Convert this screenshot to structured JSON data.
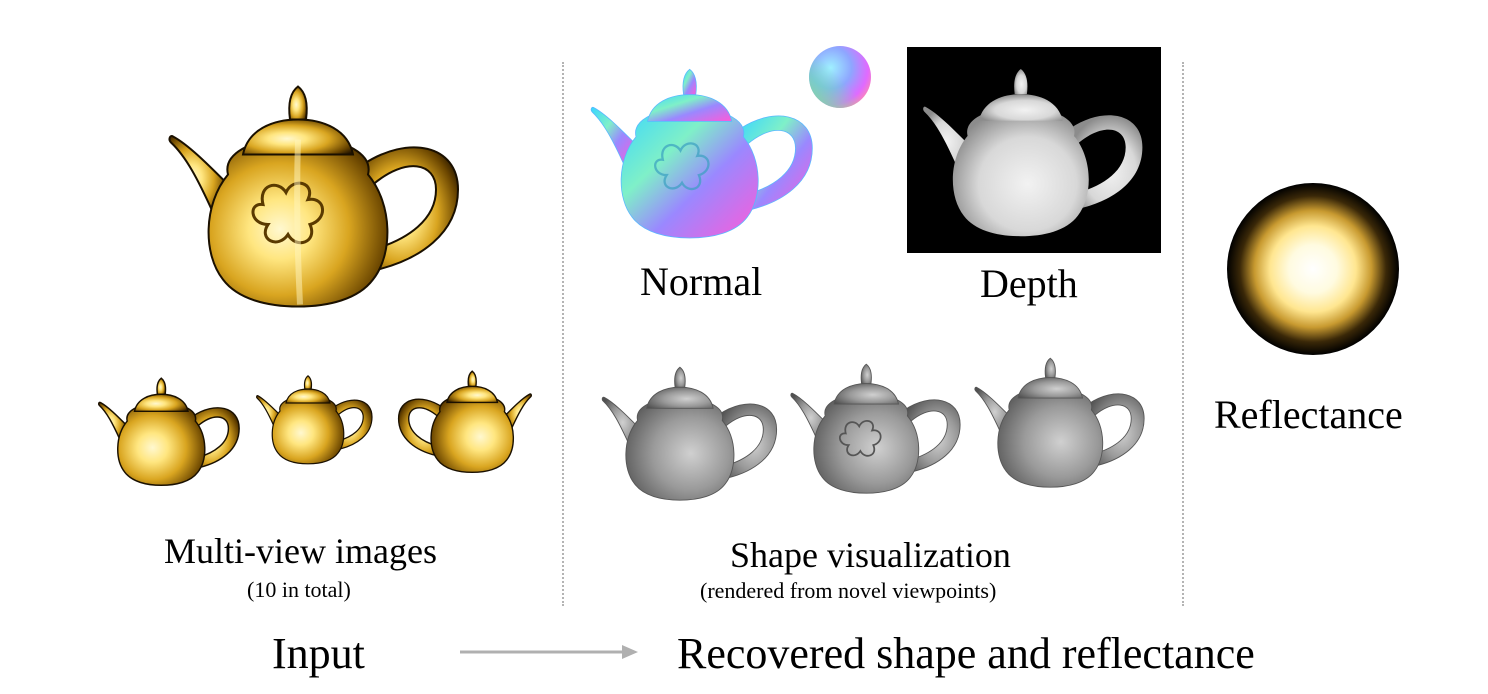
{
  "labels": {
    "normal": "Normal",
    "depth": "Depth",
    "reflectance": "Reflectance",
    "multiview_title": "Multi-view images",
    "multiview_sub": "(10 in total)",
    "shape_title": "Shape visualization",
    "shape_sub": "(rendered from novel viewpoints)",
    "input": "Input",
    "output": "Recovered shape and reflectance"
  },
  "colors": {
    "gold": "#e8c040",
    "gold_highlight": "#fff6c0",
    "gold_shadow": "#2a1a00",
    "gray_render": "#8e8e8e",
    "depth_bg": "#000000",
    "arrow": "#b0b0b0",
    "divider": "#b4b4b4"
  },
  "icons": {
    "main_input": "golden-teapot-icon",
    "normal_map": "normal-map-teapot-icon",
    "normal_sphere": "normal-sphere-icon",
    "depth_map": "depth-map-teapot-icon",
    "reflectance": "reflectance-sphere-icon",
    "arrow": "arrow-right-icon"
  }
}
